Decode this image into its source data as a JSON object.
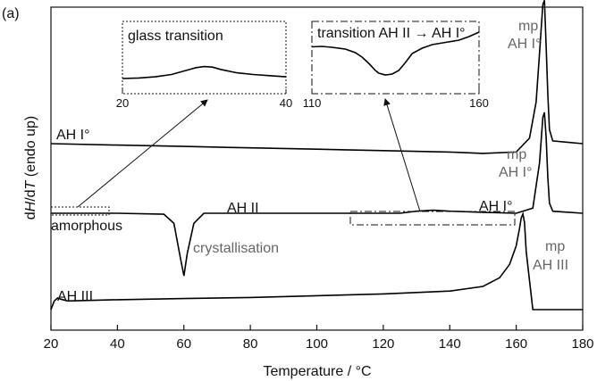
{
  "chart_data": [
    {
      "type": "line",
      "panel_label": "(a)",
      "xlabel": "Temperature / °C",
      "ylabel_parts": [
        "d",
        "H",
        "/d",
        "T",
        " (endo up)"
      ],
      "xlim": [
        20,
        180
      ],
      "xticks": [
        20,
        40,
        60,
        80,
        100,
        120,
        140,
        160,
        180
      ],
      "series": [
        {
          "name": "AH I°",
          "x": [
            20,
            40,
            60,
            80,
            100,
            120,
            140,
            150,
            160,
            164,
            166,
            167,
            168,
            168.5,
            169,
            169.5,
            170,
            171,
            180
          ],
          "y": [
            0,
            -0.01,
            -0.02,
            -0.03,
            -0.04,
            -0.05,
            -0.06,
            -0.07,
            -0.06,
            0.04,
            0.3,
            0.65,
            1.0,
            1.03,
            0.7,
            0.35,
            0.1,
            0.02,
            0.0
          ]
        },
        {
          "name": "AH II",
          "x": [
            20,
            40,
            54,
            57,
            59,
            60,
            61,
            63,
            66,
            80,
            110,
            125,
            130,
            135,
            140,
            150,
            160,
            165,
            167,
            168,
            168.5,
            169,
            169.5,
            170,
            171,
            180
          ],
          "y": [
            0,
            0,
            -0.01,
            -0.1,
            -0.45,
            -0.62,
            -0.4,
            -0.1,
            0,
            0,
            0,
            0,
            0.02,
            0.03,
            0.02,
            0.01,
            0.0,
            0.05,
            0.5,
            0.95,
            1.0,
            0.75,
            0.35,
            0.1,
            0.02,
            0.0
          ]
        },
        {
          "name": "AH III",
          "x": [
            20,
            21,
            22,
            23,
            25,
            40,
            60,
            80,
            100,
            120,
            140,
            150,
            155,
            158,
            160,
            161,
            161.5,
            162,
            162.5,
            163,
            165,
            180
          ],
          "y": [
            0,
            0.15,
            0.2,
            0.18,
            0.15,
            0.17,
            0.19,
            0.21,
            0.24,
            0.27,
            0.32,
            0.4,
            0.55,
            0.78,
            1.1,
            1.4,
            1.58,
            1.65,
            1.5,
            1.0,
            0.0,
            0.0
          ]
        }
      ],
      "annotations": [
        "AH I°",
        "AH II",
        "AH III",
        "amorphous",
        "crystallisation",
        "AH I°",
        "mp",
        "AH I°",
        "mp",
        "AH I°",
        "mp",
        "AH III"
      ]
    },
    {
      "type": "line",
      "title": "glass transition",
      "xlim": [
        20,
        40
      ],
      "xticks": [
        20,
        40
      ],
      "series": [
        {
          "x": [
            20,
            22,
            24,
            26,
            28,
            29,
            30,
            31,
            32,
            34,
            36,
            38,
            40
          ],
          "y": [
            0,
            0.02,
            0.06,
            0.14,
            0.3,
            0.38,
            0.42,
            0.4,
            0.32,
            0.2,
            0.14,
            0.1,
            0.06
          ]
        }
      ]
    },
    {
      "type": "line",
      "title": "transition AH II → AH I°",
      "xlim": [
        110,
        160
      ],
      "xticks": [
        110,
        160
      ],
      "series": [
        {
          "x": [
            110,
            113,
            116,
            120,
            123,
            125,
            127,
            129,
            130,
            132,
            134,
            136,
            138,
            140,
            143,
            146,
            150,
            154,
            157,
            160
          ],
          "y": [
            0.95,
            0.96,
            0.94,
            0.9,
            0.82,
            0.72,
            0.58,
            0.42,
            0.36,
            0.32,
            0.34,
            0.42,
            0.6,
            0.8,
            0.92,
            1.0,
            1.05,
            1.1,
            1.18,
            1.28
          ]
        }
      ]
    }
  ]
}
